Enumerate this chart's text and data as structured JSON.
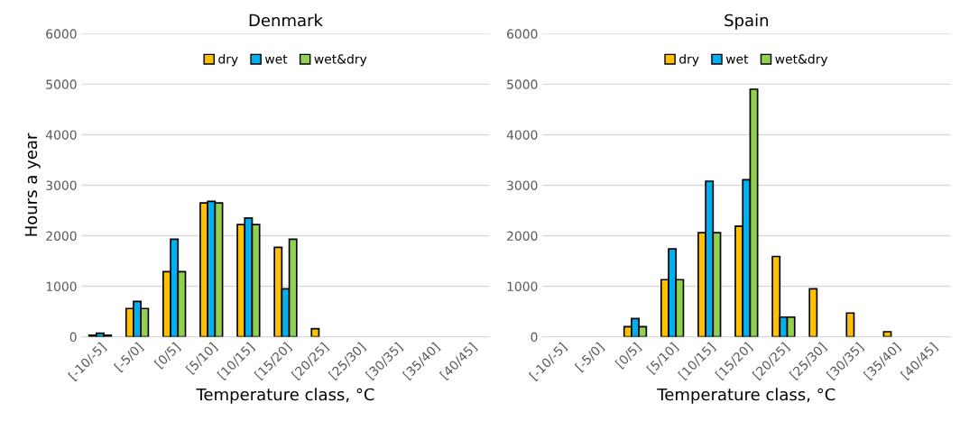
{
  "chart_data": [
    {
      "type": "bar",
      "title": "Denmark",
      "xlabel": "Temperature class, °C",
      "ylabel": "Hours a year",
      "categories": [
        "[-10/-5]",
        "[-5/0]",
        "[0/5]",
        "[5/10]",
        "[10/15]",
        "[15/20]",
        "[20/25]",
        "[25/30]",
        "[30/35]",
        "[35/40]",
        "[40/45]"
      ],
      "series": [
        {
          "name": "dry",
          "color": "#ffc000",
          "values": [
            30,
            560,
            1290,
            2650,
            2220,
            1770,
            160,
            null,
            null,
            null,
            null
          ]
        },
        {
          "name": "wet",
          "color": "#00b0f0",
          "values": [
            70,
            700,
            1930,
            2680,
            2350,
            950,
            null,
            null,
            null,
            null,
            null
          ]
        },
        {
          "name": "wet&dry",
          "color": "#92d050",
          "values": [
            30,
            560,
            1290,
            2650,
            2220,
            1930,
            null,
            null,
            null,
            null,
            null
          ]
        }
      ],
      "ylim": [
        0,
        6000
      ],
      "yticks": [
        0,
        1000,
        2000,
        3000,
        4000,
        5000,
        6000
      ],
      "grid": "y",
      "legend": "top"
    },
    {
      "type": "bar",
      "title": "Spain",
      "xlabel": "Temperature class, °C",
      "categories": [
        "[-10/-5]",
        "[-5/0]",
        "[0/5]",
        "[5/10]",
        "[10/15]",
        "[15/20]",
        "[20/25]",
        "[25/30]",
        "[30/35]",
        "[35/40]",
        "[40/45]"
      ],
      "series": [
        {
          "name": "dry",
          "color": "#ffc000",
          "values": [
            null,
            null,
            200,
            1130,
            2060,
            2190,
            1590,
            950,
            470,
            100,
            null
          ]
        },
        {
          "name": "wet",
          "color": "#00b0f0",
          "values": [
            null,
            null,
            360,
            1740,
            3080,
            3110,
            390,
            null,
            null,
            null,
            null
          ]
        },
        {
          "name": "wet&dry",
          "color": "#92d050",
          "values": [
            null,
            null,
            200,
            1130,
            2060,
            4900,
            390,
            null,
            null,
            null,
            null
          ]
        }
      ],
      "ylim": [
        0,
        6000
      ],
      "yticks": [
        0,
        1000,
        2000,
        3000,
        4000,
        5000,
        6000
      ],
      "grid": "y",
      "legend": "top"
    }
  ]
}
